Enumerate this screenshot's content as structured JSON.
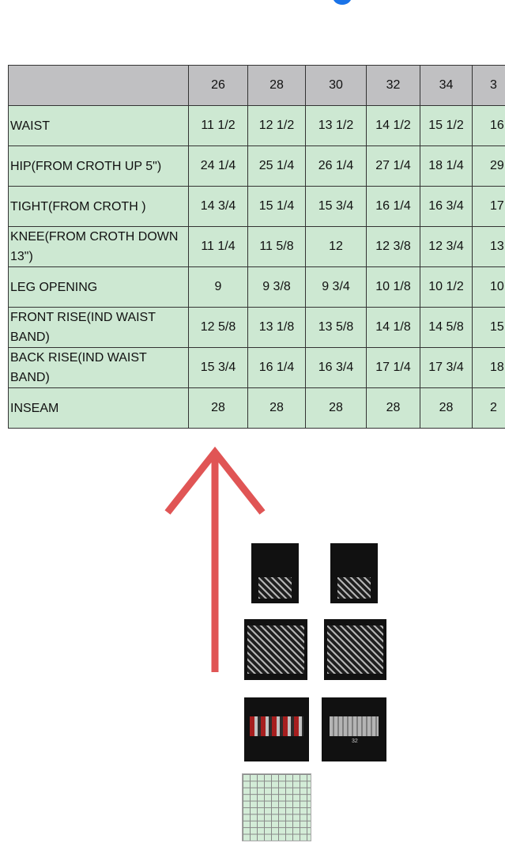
{
  "size_chart": {
    "header": [
      "",
      "26",
      "28",
      "30",
      "32",
      "34",
      "3"
    ],
    "rows": [
      {
        "label": "WAIST",
        "values": [
          "11 1/2",
          "12 1/2",
          "13 1/2",
          "14 1/2",
          "15 1/2",
          "16"
        ]
      },
      {
        "label": "HIP(FROM CROTH UP 5\")",
        "values": [
          "24 1/4",
          "25 1/4",
          "26 1/4",
          "27 1/4",
          "18 1/4",
          "29"
        ]
      },
      {
        "label": "TIGHT(FROM CROTH )",
        "values": [
          "14 3/4",
          "15 1/4",
          "15 3/4",
          "16 1/4",
          "16 3/4",
          "17"
        ]
      },
      {
        "label": "KNEE(FROM CROTH DOWN 13\")",
        "values": [
          "11 1/4",
          "11 5/8",
          "12",
          "12 3/8",
          "12 3/4",
          "13"
        ]
      },
      {
        "label": "LEG OPENING",
        "values": [
          "9",
          "9 3/8",
          "9 3/4",
          "10 1/8",
          "10 1/2",
          "10"
        ]
      },
      {
        "label": "FRONT RISE(IND WAIST BAND)",
        "values": [
          "12 5/8",
          "13 1/8",
          "13 5/8",
          "14 1/8",
          "14 5/8",
          "15"
        ]
      },
      {
        "label": "BACK RISE(IND WAIST BAND)",
        "values": [
          "15 3/4",
          "16 1/4",
          "16 3/4",
          "17 1/4",
          "17 3/4",
          "18"
        ]
      },
      {
        "label": "INSEAM",
        "values": [
          "28",
          "28",
          "28",
          "28",
          "28",
          "2"
        ]
      }
    ]
  },
  "colors": {
    "header_bg": "#c0c0c2",
    "row_bg": "#cde8d2",
    "arrow": "#e05555",
    "dot": "#1a73e8"
  },
  "icons": {
    "arrow": "arrow-up-icon"
  },
  "photos": {
    "tag_size_label": "32"
  }
}
